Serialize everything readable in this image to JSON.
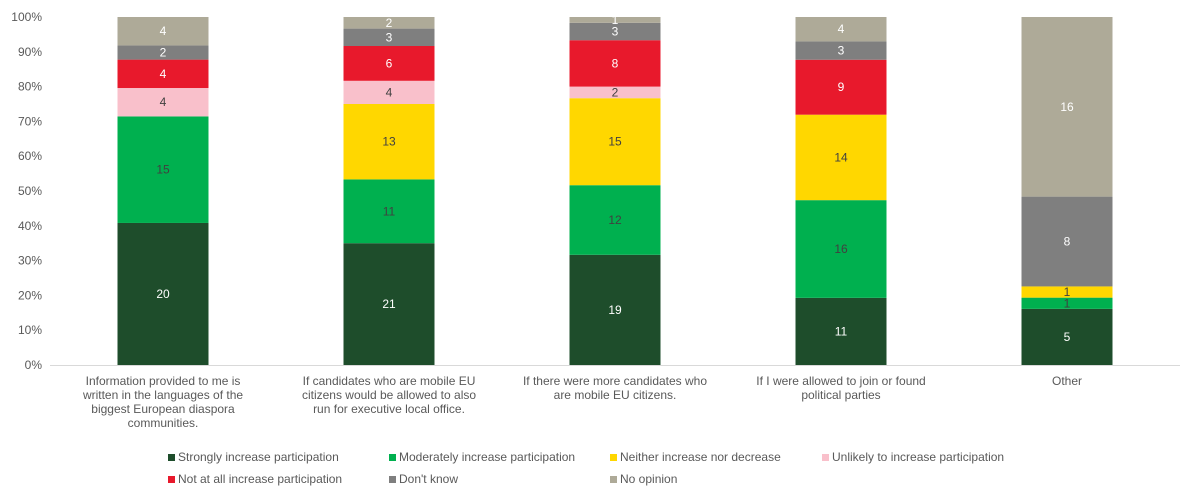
{
  "chart_data": {
    "type": "bar",
    "stacked": "percent",
    "categories": [
      "Information provided to me is written in the languages of the biggest European diaspora communities.",
      "If candidates who are mobile EU citizens would be allowed to also run for executive local office.",
      "If there were more candidates who are mobile EU citizens.",
      "If I were allowed to join or found political parties",
      "Other"
    ],
    "category_lines": [
      [
        "Information provided to me is",
        "written in the languages of the",
        "biggest European diaspora",
        "communities."
      ],
      [
        "If candidates who are mobile EU",
        "citizens would be allowed to also",
        "run for executive local office."
      ],
      [
        "If there were more candidates who",
        "are mobile EU citizens."
      ],
      [
        "If I were allowed to join or found",
        "political parties"
      ],
      [
        "Other"
      ]
    ],
    "series": [
      {
        "name": "Strongly increase participation",
        "color": "#1e4d2b",
        "label_color": "#ffffff",
        "values": [
          20,
          21,
          19,
          11,
          5
        ]
      },
      {
        "name": "Moderately increase participation",
        "color": "#00b04f",
        "label_color": "#404040",
        "values": [
          15,
          11,
          12,
          16,
          1
        ]
      },
      {
        "name": "Neither increase nor decrease",
        "color": "#ffd700",
        "label_color": "#404040",
        "values": [
          0,
          13,
          15,
          14,
          1
        ]
      },
      {
        "name": "Unlikely to increase participation",
        "color": "#f9c0cb",
        "label_color": "#404040",
        "values": [
          4,
          4,
          2,
          0,
          0
        ]
      },
      {
        "name": "Not at all increase participation",
        "color": "#e8192c",
        "label_color": "#ffffff",
        "values": [
          4,
          6,
          8,
          9,
          0
        ]
      },
      {
        "name": "Don't know",
        "color": "#7f7f7f",
        "label_color": "#ffffff",
        "values": [
          2,
          3,
          3,
          3,
          8
        ]
      },
      {
        "name": "No opinion",
        "color": "#aeaa98",
        "label_color": "#ffffff",
        "values": [
          4,
          2,
          1,
          4,
          16
        ]
      }
    ],
    "y_ticks": [
      "0%",
      "10%",
      "20%",
      "30%",
      "40%",
      "50%",
      "60%",
      "70%",
      "80%",
      "90%",
      "100%"
    ],
    "ylim": [
      0,
      100
    ],
    "grid": false,
    "legend_position": "bottom",
    "title": "",
    "xlabel": "",
    "ylabel": ""
  }
}
